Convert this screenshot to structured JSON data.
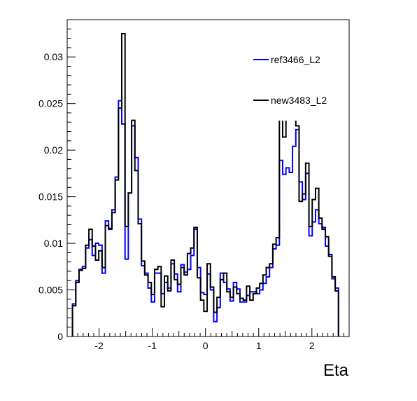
{
  "chart_data": {
    "type": "line",
    "title": "",
    "xlabel": "Eta",
    "ylabel": "",
    "xlim": [
      -2.6,
      2.7
    ],
    "ylim": [
      0,
      0.034
    ],
    "x_ticks": [
      -2,
      -1,
      0,
      1,
      2
    ],
    "x_tick_labels": [
      "-2",
      "-1",
      "0",
      "1",
      "2"
    ],
    "y_ticks": [
      0,
      0.005,
      0.01,
      0.015,
      0.02,
      0.025,
      0.03
    ],
    "y_tick_labels": [
      "0",
      "0.005",
      "0.01",
      "0.015",
      "0.02",
      "0.025",
      "0.03"
    ],
    "grid": false,
    "legend_position": "top-right",
    "bin_edges": [
      -2.5,
      2.5
    ],
    "series": [
      {
        "name": "ref3466_L2",
        "color": "#0000ff",
        "values": [
          0.0035,
          0.006,
          0.0072,
          0.0075,
          0.0095,
          0.0104,
          0.0087,
          0.01,
          0.0098,
          0.0068,
          0.0124,
          0.0115,
          0.0136,
          0.0171,
          0.0253,
          0.0228,
          0.0083,
          0.0154,
          0.0226,
          0.0192,
          0.0126,
          0.0076,
          0.0068,
          0.0052,
          0.0037,
          0.0068,
          0.0068,
          0.0046,
          0.0058,
          0.0052,
          0.0078,
          0.0067,
          0.0048,
          0.0077,
          0.0069,
          0.0072,
          0.0087,
          0.0115,
          0.0074,
          0.0047,
          0.0045,
          0.0067,
          0.005,
          0.0016,
          0.0031,
          0.0068,
          0.0058,
          0.0051,
          0.0038,
          0.0058,
          0.0051,
          0.0037,
          0.0037,
          0.0044,
          0.0048,
          0.0048,
          0.0046,
          0.005,
          0.0057,
          0.0064,
          0.0074,
          0.0094,
          0.0098,
          0.0189,
          0.0174,
          0.0181,
          0.0176,
          0.0204,
          0.0222,
          0.0166,
          0.0147,
          0.0175,
          0.0108,
          0.0123,
          0.0136,
          0.0121,
          0.0117,
          0.0097,
          0.0088,
          0.0062,
          0.0052
        ]
      },
      {
        "name": "new3483_L2",
        "color": "#000000",
        "values": [
          0.0033,
          0.0058,
          0.0071,
          0.0073,
          0.0098,
          0.0115,
          0.0097,
          0.0082,
          0.0092,
          0.0074,
          0.0119,
          0.0116,
          0.0133,
          0.0168,
          0.0245,
          0.0325,
          0.0118,
          0.0154,
          0.0232,
          0.0178,
          0.0121,
          0.0081,
          0.0066,
          0.0058,
          0.0045,
          0.0072,
          0.0075,
          0.0032,
          0.0065,
          0.0049,
          0.0082,
          0.0061,
          0.0056,
          0.0074,
          0.0066,
          0.0089,
          0.0095,
          0.0117,
          0.0063,
          0.0039,
          0.0027,
          0.0078,
          0.0053,
          0.0026,
          0.0042,
          0.0061,
          0.0068,
          0.0048,
          0.0042,
          0.0053,
          0.0046,
          0.0041,
          0.0039,
          0.0054,
          0.0039,
          0.0046,
          0.0052,
          0.0057,
          0.0066,
          0.0074,
          0.0078,
          0.0099,
          0.0106,
          0.0233,
          0.0214,
          0.0271,
          0.0303,
          0.0259,
          0.0226,
          0.0145,
          0.0153,
          0.0186,
          0.0118,
          0.0147,
          0.0159,
          0.0127,
          0.0115,
          0.0107,
          0.0086,
          0.0064,
          0.0049
        ]
      }
    ]
  }
}
